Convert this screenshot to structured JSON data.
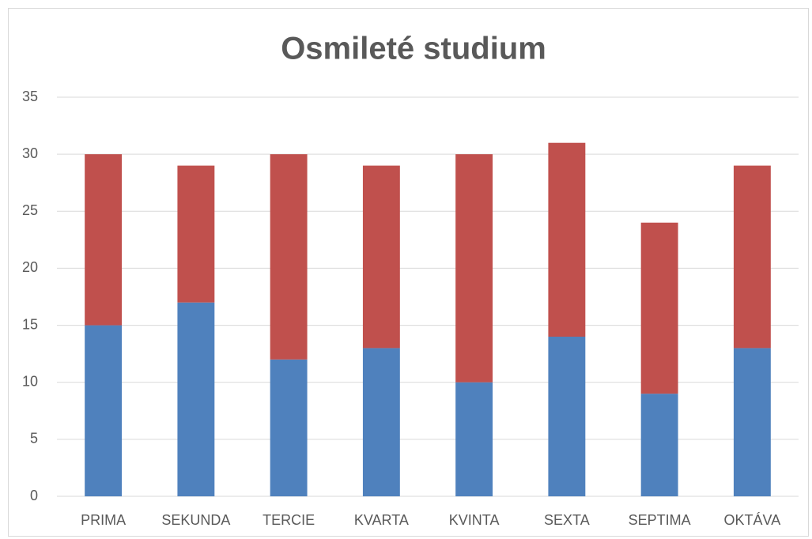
{
  "chart_data": {
    "type": "stacked_bar",
    "title": "Osmileté studium",
    "categories": [
      "PRIMA",
      "SEKUNDA",
      "TERCIE",
      "KVARTA",
      "KVINTA",
      "SEXTA",
      "SEPTIMA",
      "OKTÁVA"
    ],
    "series": [
      {
        "color": "#4f81bd",
        "values": [
          15,
          17,
          12,
          13,
          10,
          14,
          9,
          13
        ]
      },
      {
        "color": "#c0504d",
        "values": [
          15,
          12,
          18,
          16,
          20,
          17,
          15,
          16
        ]
      }
    ],
    "ylim": [
      0,
      35
    ],
    "yticks": [
      0,
      5,
      10,
      15,
      20,
      25,
      30,
      35
    ],
    "grid": true
  }
}
